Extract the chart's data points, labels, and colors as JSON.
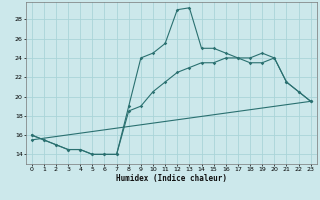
{
  "bg_color": "#cce8eb",
  "grid_color": "#aad4d8",
  "line_color": "#2a7070",
  "xlabel": "Humidex (Indice chaleur)",
  "xlim": [
    -0.5,
    23.5
  ],
  "ylim": [
    13.0,
    29.8
  ],
  "yticks": [
    14,
    16,
    18,
    20,
    22,
    24,
    26,
    28
  ],
  "xticks": [
    0,
    1,
    2,
    3,
    4,
    5,
    6,
    7,
    8,
    9,
    10,
    11,
    12,
    13,
    14,
    15,
    16,
    17,
    18,
    19,
    20,
    21,
    22,
    23
  ],
  "line1_x": [
    0,
    1,
    2,
    3,
    4,
    5,
    6,
    7,
    8,
    9,
    10,
    11,
    12,
    13,
    14,
    15,
    16,
    17,
    18,
    19,
    20,
    21,
    22,
    23
  ],
  "line1_y": [
    16.0,
    15.5,
    15.0,
    14.5,
    14.5,
    14.0,
    14.0,
    14.0,
    19.0,
    24.0,
    24.5,
    25.5,
    29.0,
    29.2,
    25.0,
    25.0,
    24.5,
    24.0,
    24.0,
    24.5,
    24.0,
    21.5,
    20.5,
    19.5
  ],
  "line2_x": [
    0,
    1,
    2,
    3,
    4,
    5,
    6,
    7,
    8,
    9,
    10,
    11,
    12,
    13,
    14,
    15,
    16,
    17,
    18,
    19,
    20,
    21,
    22,
    23
  ],
  "line2_y": [
    16.0,
    15.5,
    15.0,
    14.5,
    14.5,
    14.0,
    14.0,
    14.0,
    18.5,
    19.0,
    20.5,
    21.5,
    22.5,
    23.0,
    23.5,
    23.5,
    24.0,
    24.0,
    23.5,
    23.5,
    24.0,
    21.5,
    20.5,
    19.5
  ],
  "line3_x": [
    0,
    23
  ],
  "line3_y": [
    15.5,
    19.5
  ]
}
